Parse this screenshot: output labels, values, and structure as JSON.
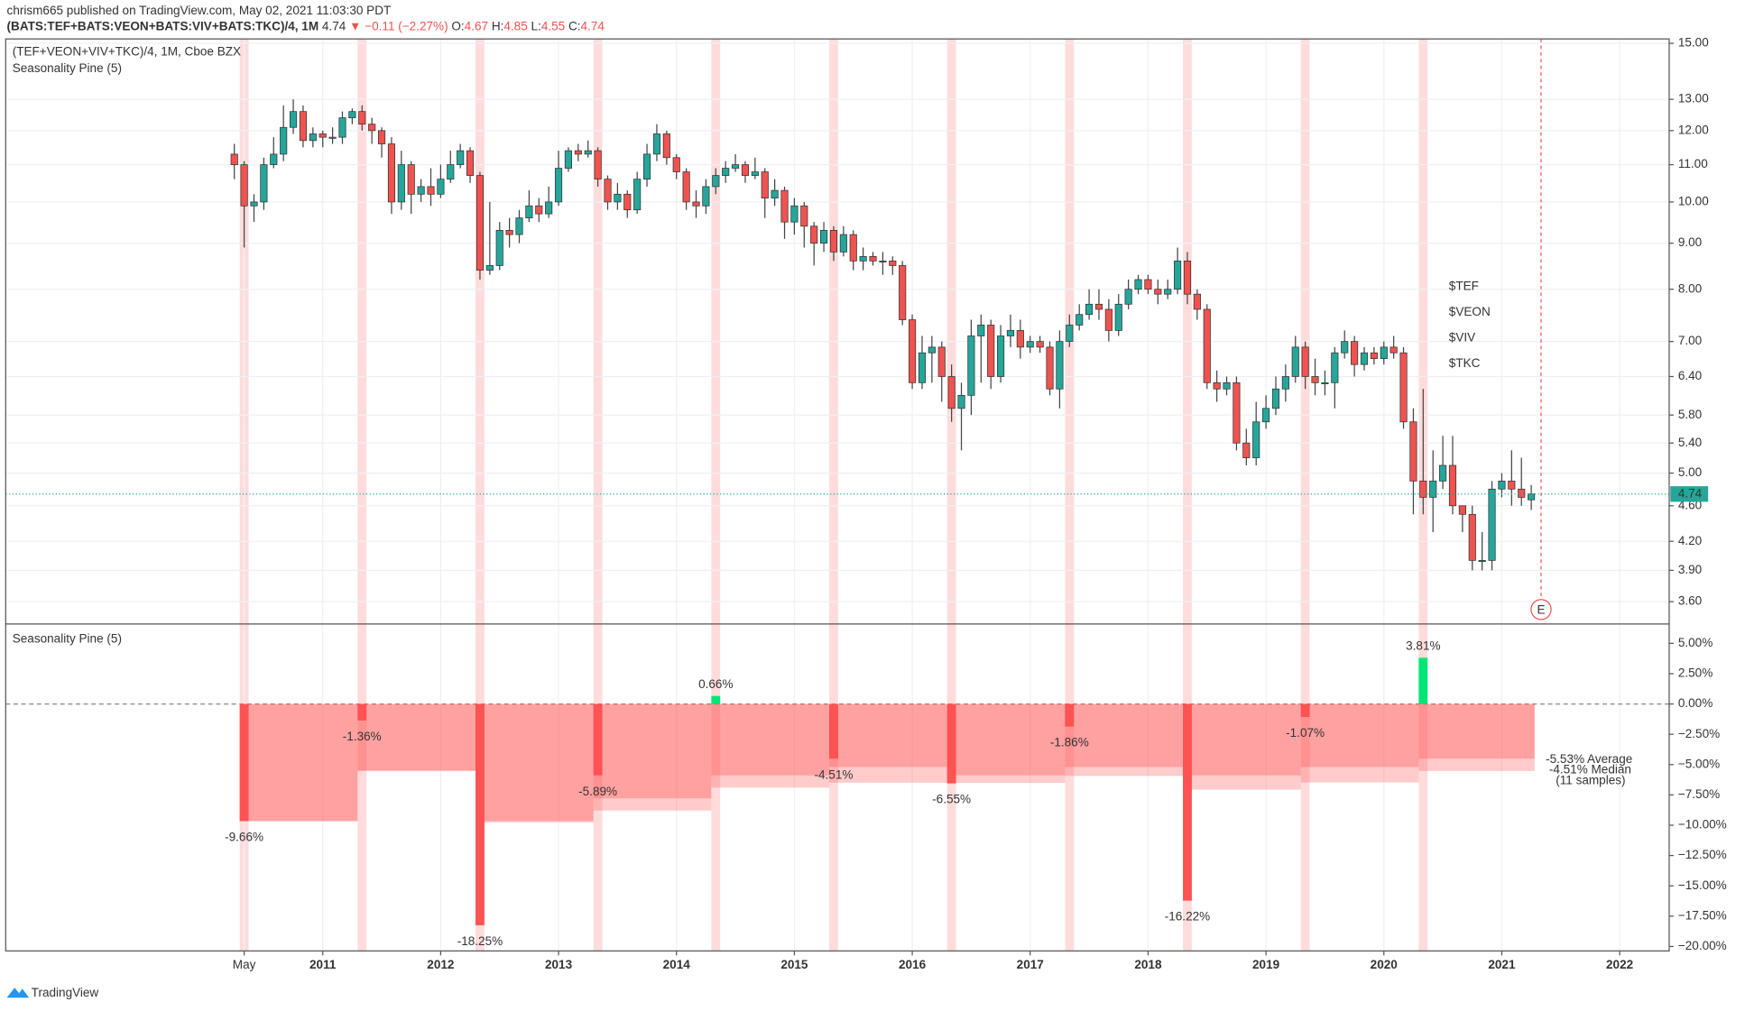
{
  "header": {
    "byline": "chrism665 published on TradingView.com, May 02, 2021 11:03:30 PDT",
    "symbol": "(BATS:TEF+BATS:VEON+BATS:VIV+BATS:TKC)/4, 1M",
    "last": "4.74",
    "change": "▼ −0.11 (−2.27%)",
    "o_label": "O:",
    "o": "4.67",
    "h_label": "H:",
    "h": "4.85",
    "l_label": "L:",
    "l": "4.55",
    "c_label": "C:",
    "c": "4.74",
    "logo": "TradingView"
  },
  "chart_data": [
    {
      "type": "candlestick",
      "title": "(TEF+VEON+VIV+TKC)/4, 1M, Cboe BZX",
      "subtitle": "Seasonality Pine (5)",
      "open": [
        11.3,
        11.0,
        9.9,
        10.0,
        11.0,
        11.3,
        12.1,
        12.6,
        11.7,
        11.9,
        11.8,
        11.8,
        12.4,
        12.6,
        12.2,
        12.0,
        11.6,
        10.0,
        11.0,
        10.2,
        10.4,
        10.2,
        10.6,
        11.0,
        11.4,
        10.7,
        8.4,
        8.5,
        9.3,
        9.2,
        9.6,
        9.9,
        9.7,
        10.0,
        10.9,
        11.4,
        11.3,
        11.4,
        10.6,
        10.0,
        10.2,
        9.8,
        10.6,
        11.3,
        11.9,
        11.2,
        10.8,
        10.0,
        9.9,
        10.4,
        10.7,
        10.9,
        11.0,
        10.7,
        10.8,
        10.1,
        10.3,
        9.5,
        9.9,
        9.4,
        9.0,
        9.3,
        8.8,
        9.2,
        8.6,
        8.7,
        8.6,
        8.6,
        8.5,
        7.4,
        6.3,
        6.8,
        6.9,
        6.4,
        5.9,
        6.1,
        7.1,
        7.3,
        6.4,
        7.1,
        7.2,
        6.9,
        7.0,
        6.9,
        6.2,
        7.0,
        7.3,
        7.5,
        7.7,
        7.6,
        7.2,
        7.7,
        8.0,
        8.2,
        8.0,
        7.9,
        8.0,
        8.6,
        7.9,
        7.6,
        6.3,
        6.2,
        6.3,
        5.4,
        5.2,
        5.7,
        5.9,
        6.2,
        6.4,
        6.9,
        6.4,
        6.3,
        6.3,
        6.8,
        7.0,
        6.6,
        6.8,
        6.7,
        6.9,
        6.8,
        5.7,
        4.9,
        4.7,
        4.9,
        5.1,
        4.6,
        4.5,
        4.0,
        4.0,
        4.8,
        4.9,
        4.8,
        4.67
      ],
      "high": [
        11.6,
        11.1,
        10.2,
        11.2,
        11.8,
        12.8,
        13.0,
        12.8,
        12.1,
        12.0,
        12.1,
        12.6,
        12.7,
        12.8,
        12.4,
        12.1,
        11.8,
        11.4,
        11.1,
        10.6,
        10.9,
        11.0,
        11.4,
        11.6,
        11.5,
        10.8,
        10.0,
        9.5,
        9.6,
        9.8,
        10.3,
        10.1,
        10.4,
        11.4,
        11.5,
        11.6,
        11.7,
        11.5,
        10.7,
        10.5,
        10.3,
        10.8,
        11.6,
        12.2,
        12.0,
        11.3,
        10.9,
        10.3,
        10.6,
        10.9,
        11.1,
        11.3,
        11.1,
        11.2,
        10.9,
        10.6,
        10.4,
        10.1,
        10.0,
        9.5,
        9.5,
        9.4,
        9.4,
        9.3,
        8.9,
        8.8,
        8.8,
        8.7,
        8.6,
        7.5,
        7.1,
        7.1,
        7.0,
        6.6,
        6.3,
        7.4,
        7.5,
        7.4,
        7.3,
        7.5,
        7.4,
        7.1,
        7.1,
        7.0,
        7.2,
        7.5,
        7.7,
        8.0,
        8.0,
        7.8,
        7.9,
        8.2,
        8.3,
        8.3,
        8.2,
        8.2,
        8.9,
        8.8,
        8.0,
        7.7,
        6.5,
        6.4,
        6.4,
        5.6,
        6.0,
        6.1,
        6.4,
        6.6,
        7.1,
        7.0,
        6.7,
        6.5,
        6.9,
        7.2,
        7.1,
        6.9,
        6.9,
        7.0,
        7.1,
        6.9,
        5.9,
        6.2,
        5.3,
        5.5,
        5.5,
        4.6,
        4.6,
        4.3,
        4.9,
        5.0,
        5.3,
        5.2,
        4.85
      ],
      "low": [
        10.6,
        8.9,
        9.5,
        9.8,
        10.9,
        11.1,
        11.9,
        11.5,
        11.5,
        11.5,
        11.6,
        11.6,
        12.2,
        12.0,
        11.6,
        11.2,
        9.7,
        9.8,
        9.7,
        10.0,
        9.9,
        10.1,
        10.5,
        10.9,
        10.5,
        8.2,
        8.3,
        8.4,
        8.9,
        9.0,
        9.5,
        9.5,
        9.6,
        9.9,
        10.8,
        11.1,
        11.2,
        10.4,
        9.8,
        9.8,
        9.6,
        9.7,
        10.4,
        11.1,
        11.0,
        10.6,
        9.8,
        9.6,
        9.7,
        10.2,
        10.5,
        10.8,
        10.5,
        10.6,
        9.6,
        9.9,
        9.1,
        9.2,
        8.9,
        8.5,
        8.8,
        8.6,
        8.7,
        8.4,
        8.4,
        8.5,
        8.3,
        8.3,
        7.3,
        6.2,
        6.2,
        6.3,
        6.0,
        5.7,
        5.3,
        5.8,
        6.3,
        6.2,
        6.3,
        6.9,
        6.7,
        6.8,
        6.8,
        6.1,
        5.9,
        6.9,
        7.2,
        7.4,
        7.4,
        7.0,
        7.1,
        7.6,
        7.9,
        7.9,
        7.7,
        7.8,
        7.9,
        7.7,
        7.4,
        6.2,
        6.0,
        6.1,
        5.3,
        5.1,
        5.1,
        5.6,
        5.8,
        6.0,
        6.3,
        6.2,
        6.1,
        6.1,
        5.9,
        6.7,
        6.4,
        6.5,
        6.6,
        6.6,
        6.7,
        5.6,
        4.5,
        4.5,
        4.3,
        4.8,
        4.5,
        4.3,
        3.9,
        3.9,
        3.9,
        4.7,
        4.6,
        4.6,
        4.55
      ],
      "close": [
        11.0,
        9.9,
        10.0,
        11.0,
        11.3,
        12.1,
        12.6,
        11.7,
        11.9,
        11.8,
        11.8,
        12.4,
        12.6,
        12.2,
        12.0,
        11.6,
        10.0,
        11.0,
        10.2,
        10.4,
        10.2,
        10.6,
        11.0,
        11.4,
        10.7,
        8.4,
        8.5,
        9.3,
        9.2,
        9.6,
        9.9,
        9.7,
        10.0,
        10.9,
        11.4,
        11.3,
        11.4,
        10.6,
        10.0,
        10.2,
        9.8,
        10.6,
        11.3,
        11.9,
        11.2,
        10.8,
        10.0,
        9.9,
        10.4,
        10.7,
        10.9,
        11.0,
        10.7,
        10.8,
        10.1,
        10.3,
        9.5,
        9.9,
        9.4,
        9.0,
        9.3,
        8.8,
        9.2,
        8.6,
        8.7,
        8.6,
        8.6,
        8.5,
        7.4,
        6.3,
        6.8,
        6.9,
        6.4,
        5.9,
        6.1,
        7.1,
        7.3,
        6.4,
        7.1,
        7.2,
        6.9,
        7.0,
        6.9,
        6.2,
        7.0,
        7.3,
        7.5,
        7.7,
        7.6,
        7.2,
        7.7,
        8.0,
        8.2,
        8.0,
        7.9,
        8.0,
        8.6,
        7.9,
        7.6,
        6.3,
        6.2,
        6.3,
        5.4,
        5.2,
        5.7,
        5.9,
        6.2,
        6.4,
        6.9,
        6.4,
        6.3,
        6.3,
        6.8,
        7.0,
        6.6,
        6.8,
        6.7,
        6.9,
        6.8,
        5.7,
        4.9,
        4.7,
        4.9,
        5.1,
        4.6,
        4.5,
        4.0,
        4.0,
        4.8,
        4.9,
        4.8,
        4.7,
        4.74
      ],
      "up_color": "#26a69a",
      "down_color": "#ef5350",
      "log_scale": true,
      "grid": true,
      "ylim": [
        3.41,
        15.17
      ],
      "yticks": [
        {
          "value": 15,
          "label": "15.00"
        },
        {
          "value": 13,
          "label": "13.00"
        },
        {
          "value": 12,
          "label": "12.00"
        },
        {
          "value": 11,
          "label": "11.00"
        },
        {
          "value": 10,
          "label": "10.00"
        },
        {
          "value": 9,
          "label": "9.00"
        },
        {
          "value": 8,
          "label": "8.00"
        },
        {
          "value": 7,
          "label": "7.00"
        },
        {
          "value": 6.4,
          "label": "6.40"
        },
        {
          "value": 5.8,
          "label": "5.80"
        },
        {
          "value": 5.4,
          "label": "5.40"
        },
        {
          "value": 5,
          "label": "5.00"
        },
        {
          "value": 4.6,
          "label": "4.60"
        },
        {
          "value": 4.2,
          "label": "4.20"
        },
        {
          "value": 3.9,
          "label": "3.90"
        },
        {
          "value": 3.6,
          "label": "3.60"
        }
      ],
      "xlim": [
        -23.27,
        146.04
      ],
      "xticks": [
        {
          "value": 1,
          "label": "May"
        },
        {
          "value": 9,
          "label": "2011"
        },
        {
          "value": 21,
          "label": "2012"
        },
        {
          "value": 33,
          "label": "2013"
        },
        {
          "value": 45,
          "label": "2014"
        },
        {
          "value": 57,
          "label": "2015"
        },
        {
          "value": 69,
          "label": "2016"
        },
        {
          "value": 81,
          "label": "2017"
        },
        {
          "value": 93,
          "label": "2018"
        },
        {
          "value": 105,
          "label": "2019"
        },
        {
          "value": 117,
          "label": "2020"
        },
        {
          "value": 129,
          "label": "2021"
        },
        {
          "value": 141,
          "label": "2022"
        }
      ],
      "highlights": [
        1,
        13,
        25,
        37,
        49,
        61,
        73,
        85,
        97,
        109,
        121
      ],
      "annotations": [
        "$TEF",
        "$VEON",
        "$VIV",
        "$TKC"
      ],
      "marker": {
        "label": "E",
        "x": 133
      }
    },
    {
      "type": "bar",
      "title": "Seasonality Pine (5)",
      "x": [
        1,
        13,
        25,
        37,
        49,
        61,
        73,
        85,
        97,
        109,
        121
      ],
      "values": [
        -9.66,
        -1.36,
        -18.25,
        -5.89,
        0.66,
        -4.51,
        -6.55,
        -1.86,
        -16.22,
        -1.07,
        3.81
      ],
      "value_labels": [
        "-9.66%",
        "-1.36%",
        "-18.25%",
        "-5.89%",
        "0.66%",
        "-4.51%",
        "-6.55%",
        "-1.86%",
        "-16.22%",
        "-1.07%",
        "3.81%"
      ],
      "up_color": "#00e676",
      "down_color": "#ff5252",
      "series": [
        {
          "name": "-5.53% Average",
          "color": "rgba(255,82,82,0.3)",
          "values": [
            -9.66,
            -5.51,
            -9.76,
            -8.79,
            -6.9,
            -6.5,
            -6.51,
            -5.93,
            -7.07,
            -6.47,
            -5.53
          ]
        },
        {
          "name": "-4.51% Median",
          "color": "rgba(255,82,82,0.35)",
          "values": [
            -9.66,
            -5.51,
            -9.66,
            -7.78,
            -5.89,
            -5.2,
            -5.89,
            -5.2,
            -5.89,
            -5.2,
            -4.51
          ]
        }
      ],
      "note": "(11 samples)",
      "ylim": [
        -20.37,
        6.51
      ],
      "yticks": [
        {
          "value": 5,
          "label": "5.00%"
        },
        {
          "value": 2.5,
          "label": "2.50%"
        },
        {
          "value": 0,
          "label": "0.00%"
        },
        {
          "value": -2.5,
          "label": "−2.50%"
        },
        {
          "value": -5,
          "label": "−5.00%"
        },
        {
          "value": -7.5,
          "label": "−7.50%"
        },
        {
          "value": -10,
          "label": "−10.00%"
        },
        {
          "value": -12.5,
          "label": "−12.50%"
        },
        {
          "value": -15,
          "label": "−15.00%"
        },
        {
          "value": -17.5,
          "label": "−17.50%"
        },
        {
          "value": -20,
          "label": "−20.00%"
        }
      ]
    }
  ]
}
